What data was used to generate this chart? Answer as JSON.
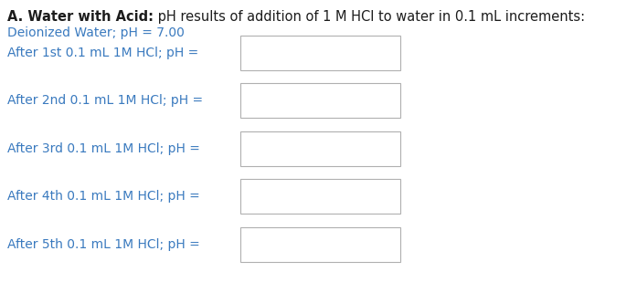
{
  "title_bold": "A. Water with Acid:",
  "title_regular": " pH results of addition of 1 M HCl to water in 0.1 mL increments:",
  "subtitle": "Deionized Water; pH = 7.00",
  "rows": [
    "After 1st 0.1 mL 1M HCl; pH =",
    "After 2nd 0.1 mL 1M HCl; pH =",
    "After 3rd 0.1 mL 1M HCl; pH =",
    "After 4th 0.1 mL 1M HCl; pH =",
    "After 5th 0.1 mL 1M HCl; pH ="
  ],
  "title_dark_color": "#1c1c1c",
  "title_blue_color": "#3a7abf",
  "row_text_color": "#3a7abf",
  "subtitle_color": "#3a7abf",
  "bg_color": "#ffffff",
  "box_edge_color": "#b0b0b0",
  "title_fontsize": 10.5,
  "body_fontsize": 10.0
}
